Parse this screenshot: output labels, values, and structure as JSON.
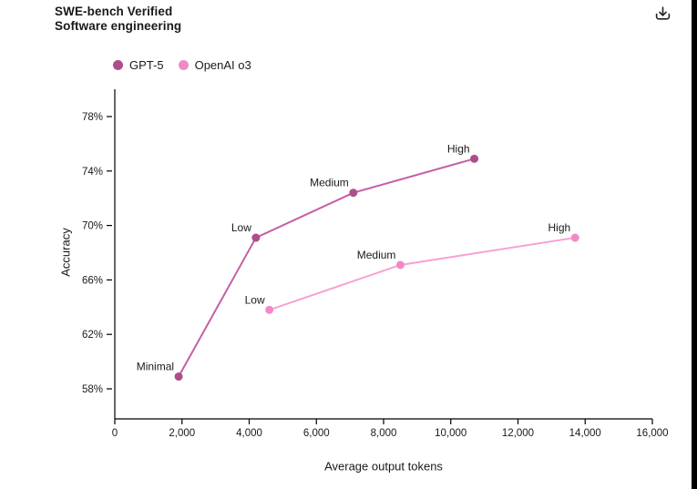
{
  "header": {
    "title_line1": "SWE-bench Verified",
    "title_line2": "Software engineering"
  },
  "colors": {
    "gpt5_dot": "#ad4d8c",
    "gpt5_line": "#c55fa5",
    "o3_dot": "#f08ac6",
    "o3_line": "#f8a0d2",
    "axis": "#000000",
    "text": "#191919",
    "border_right": "#000000"
  },
  "chart_data": {
    "type": "line",
    "title": "SWE-bench Verified",
    "subtitle": "Software engineering",
    "xlabel": "Average output tokens",
    "ylabel": "Accuracy",
    "xlim": [
      0,
      16000
    ],
    "ylim": [
      56,
      80
    ],
    "grid": false,
    "legend_position": "top-left",
    "x_ticks": [
      0,
      2000,
      4000,
      6000,
      8000,
      10000,
      12000,
      14000,
      16000
    ],
    "x_tick_labels": [
      "0",
      "2,000",
      "4,000",
      "6,000",
      "8,000",
      "10,000",
      "12,000",
      "14,000",
      "16,000"
    ],
    "y_ticks": [
      58,
      62,
      66,
      70,
      74,
      78
    ],
    "y_tick_labels": [
      "58%",
      "62%",
      "66%",
      "70%",
      "74%",
      "78%"
    ],
    "series": [
      {
        "name": "GPT-5",
        "dot_color": "#ad4d8c",
        "line_color": "#c55fa5",
        "points": [
          {
            "label": "Minimal",
            "x": 1900,
            "y": 58.9
          },
          {
            "label": "Low",
            "x": 4200,
            "y": 69.1
          },
          {
            "label": "Medium",
            "x": 7100,
            "y": 72.4
          },
          {
            "label": "High",
            "x": 10700,
            "y": 74.9
          }
        ]
      },
      {
        "name": "OpenAI o3",
        "dot_color": "#f08ac6",
        "line_color": "#f8a0d2",
        "points": [
          {
            "label": "Low",
            "x": 4600,
            "y": 63.8
          },
          {
            "label": "Medium",
            "x": 8500,
            "y": 67.1
          },
          {
            "label": "High",
            "x": 13700,
            "y": 69.1
          }
        ]
      }
    ]
  }
}
